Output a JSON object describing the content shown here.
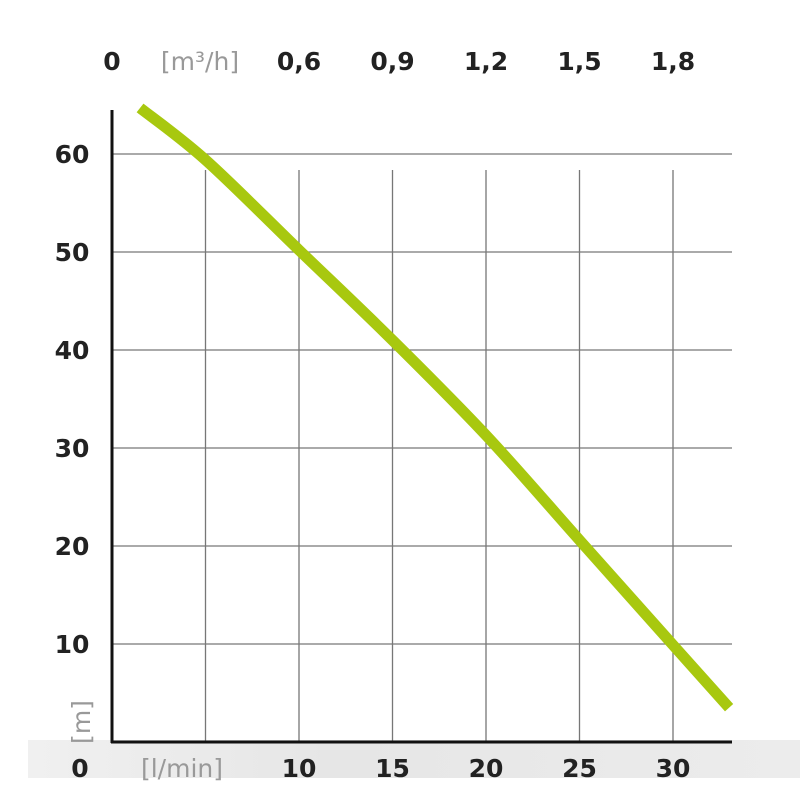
{
  "chart_data": {
    "type": "line",
    "xlabel": "[l/min]",
    "ylabel": "[m]",
    "x2label": "[m³/h]",
    "xlim": [
      0,
      33
    ],
    "ylim": [
      0,
      66
    ],
    "x_ticks": [
      0,
      10,
      15,
      20,
      25,
      30
    ],
    "x_tick_labels": [
      "0",
      "10",
      "15",
      "20",
      "25",
      "30"
    ],
    "x_grid": [
      5,
      10,
      15,
      20,
      25,
      30
    ],
    "x2_ticks": [
      0,
      10,
      15,
      20,
      25,
      30
    ],
    "x2_tick_labels": [
      "0",
      "0,6",
      "0,9",
      "1,2",
      "1,5",
      "1,8"
    ],
    "y_ticks": [
      10,
      20,
      30,
      40,
      50,
      60
    ],
    "y_tick_labels": [
      "10",
      "20",
      "30",
      "40",
      "50",
      "60"
    ],
    "y_zero_label": "0",
    "grid": true,
    "line_color": "#a8c80f",
    "series": [
      {
        "x": [
          1.5,
          5,
          10,
          15,
          20,
          25,
          30,
          33
        ],
        "y": [
          64.7,
          59.4,
          50.2,
          41,
          31.3,
          20.6,
          9.9,
          3.5
        ]
      }
    ]
  }
}
